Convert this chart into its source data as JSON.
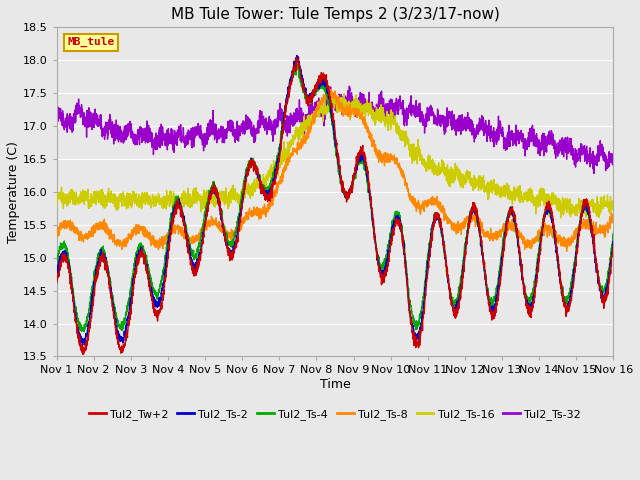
{
  "title": "MB Tule Tower: Tule Temps 2 (3/23/17-now)",
  "xlabel": "Time",
  "ylabel": "Temperature (C)",
  "ylim": [
    13.5,
    18.5
  ],
  "xlim": [
    0,
    15
  ],
  "xtick_labels": [
    "Nov 1",
    "Nov 2",
    "Nov 3",
    "Nov 4",
    "Nov 5",
    "Nov 6",
    "Nov 7",
    "Nov 8",
    "Nov 9",
    "Nov 10",
    "Nov 11",
    "Nov 12",
    "Nov 13",
    "Nov 14",
    "Nov 15",
    "Nov 16"
  ],
  "xtick_positions": [
    0,
    1,
    2,
    3,
    4,
    5,
    6,
    7,
    8,
    9,
    10,
    11,
    12,
    13,
    14,
    15
  ],
  "series_colors": {
    "Tul2_Tw+2": "#cc0000",
    "Tul2_Ts-2": "#0000cc",
    "Tul2_Ts-4": "#00aa00",
    "Tul2_Ts-8": "#ff8800",
    "Tul2_Ts-16": "#cccc00",
    "Tul2_Ts-32": "#9900cc"
  },
  "legend_labels": [
    "Tul2_Tw+2",
    "Tul2_Ts-2",
    "Tul2_Ts-4",
    "Tul2_Ts-8",
    "Tul2_Ts-16",
    "Tul2_Ts-32"
  ],
  "bg_color": "#e8e8e8",
  "plot_bg_color": "#e8e8e8",
  "grid_color": "#ffffff",
  "title_fontsize": 11,
  "axis_fontsize": 9,
  "tick_fontsize": 8,
  "legend_fontsize": 8,
  "watermark_text": "MB_tule",
  "watermark_color": "#cc0000",
  "watermark_bg": "#ffff99",
  "watermark_border": "#cc9900"
}
